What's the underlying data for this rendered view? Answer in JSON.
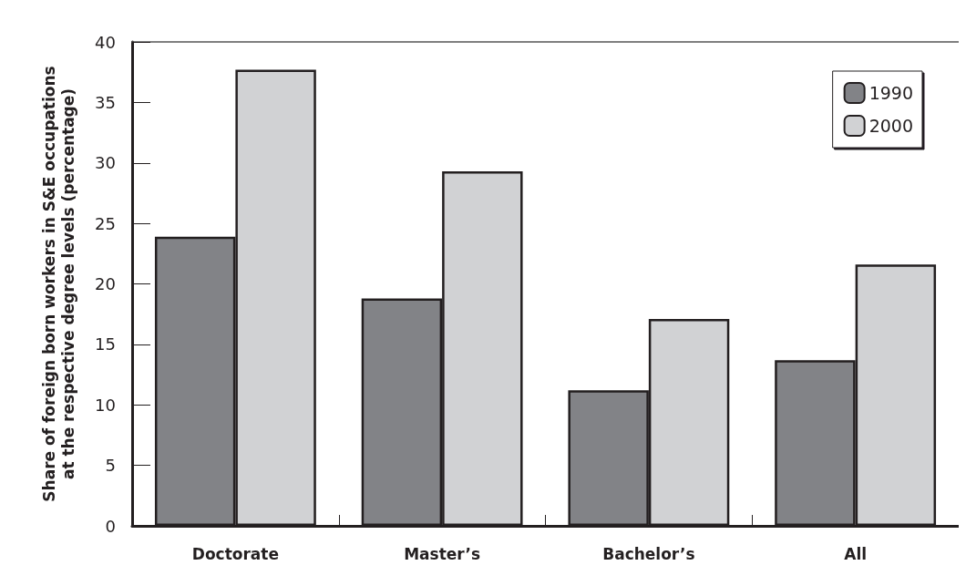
{
  "chart_data": {
    "type": "bar",
    "ylabel": "Share of foreign born workers in S&E occupations\nat the respective degree levels (percentage)",
    "categories": [
      "Doctorate",
      "Master’s",
      "Bachelor’s",
      "All"
    ],
    "series": [
      {
        "name": "1990",
        "color": "#828387",
        "values": [
          23.9,
          18.8,
          11.2,
          13.7
        ]
      },
      {
        "name": "2000",
        "color": "#d1d2d4",
        "values": [
          37.7,
          29.3,
          17.1,
          21.6
        ]
      }
    ],
    "ylim": [
      0,
      40
    ],
    "yticks": [
      0,
      5,
      10,
      15,
      20,
      25,
      30,
      35,
      40
    ],
    "grid": false,
    "legend": "top right"
  }
}
